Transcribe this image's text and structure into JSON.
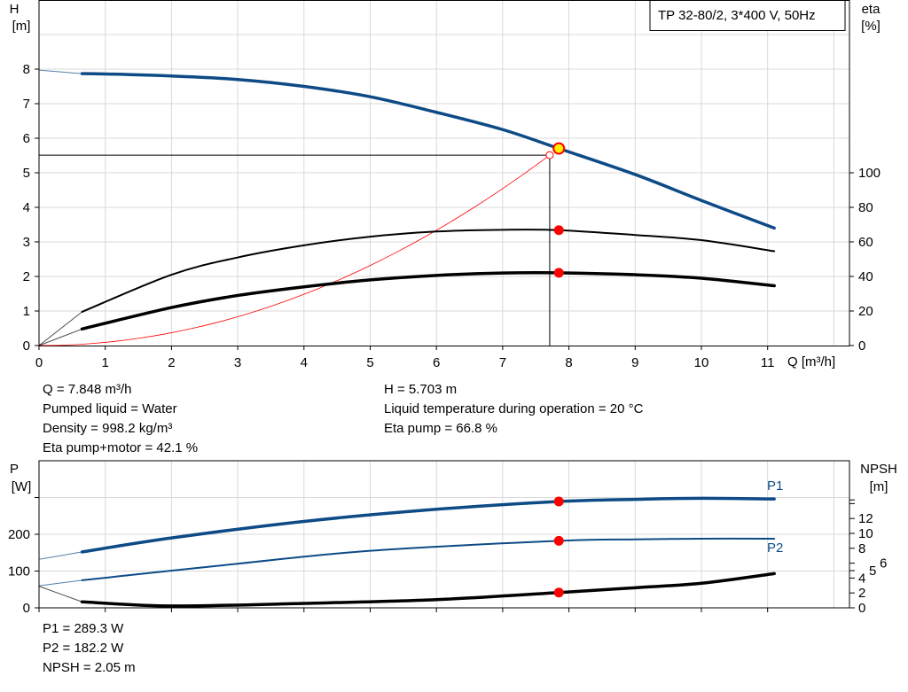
{
  "legend_box": "TP 32-80/2, 3*400 V, 50Hz",
  "colors": {
    "blue": "#0d4a86",
    "black": "#000000",
    "red": "#ff0000",
    "grid": "#d9d9d9",
    "duty_point": "#ffee00"
  },
  "chart_data": [
    {
      "type": "line",
      "ylabel": "H",
      "yunit": "[m]",
      "y2label": "eta",
      "y2unit": "[%]",
      "xlabel": "Q [m³/h]",
      "xlim": [
        0,
        12
      ],
      "ylim": [
        0,
        10
      ],
      "y2lim": [
        0,
        200
      ],
      "xticks": [
        0,
        1,
        2,
        3,
        4,
        5,
        6,
        7,
        8,
        9,
        10,
        11
      ],
      "yticks": [
        0,
        1,
        2,
        3,
        4,
        5,
        6,
        7,
        8
      ],
      "y2ticks": [
        0,
        20,
        40,
        60,
        80,
        100
      ],
      "grid": true,
      "series": [
        {
          "role": "head",
          "axis": "H",
          "x": [
            0.65,
            1,
            2,
            3,
            4,
            5,
            6,
            7,
            7.848,
            9,
            10,
            11.1
          ],
          "y": [
            7.87,
            7.86,
            7.8,
            7.7,
            7.5,
            7.2,
            6.75,
            6.25,
            5.703,
            4.95,
            4.2,
            3.4
          ],
          "extension": {
            "x": [
              0,
              0.65
            ],
            "y": [
              7.97,
              7.87
            ]
          }
        },
        {
          "role": "eta-pump",
          "axis": "eta",
          "x": [
            0.65,
            2,
            3,
            4,
            5,
            6,
            7,
            7.848,
            9,
            10,
            11.1
          ],
          "y": [
            19.5,
            41,
            51,
            58,
            63,
            66,
            67,
            66.8,
            64,
            61,
            54.6
          ],
          "extension": {
            "x": [
              0,
              0.65
            ],
            "y": [
              0,
              19.5
            ]
          }
        },
        {
          "role": "eta-pump-motor",
          "axis": "eta",
          "x": [
            0.65,
            2,
            3,
            4,
            5,
            6,
            7,
            7.848,
            9,
            10,
            11.1
          ],
          "y": [
            9.6,
            22,
            29,
            34,
            38,
            40.6,
            42,
            42.1,
            41,
            39,
            34.6
          ],
          "extension": {
            "x": [
              0,
              0.65
            ],
            "y": [
              0,
              9.6
            ]
          }
        },
        {
          "role": "system-curve",
          "axis": "H",
          "x": [
            0,
            7.71
          ],
          "y": [
            0,
            5.51
          ],
          "shape": "quadratic"
        }
      ],
      "duty_point": {
        "Q": 7.848,
        "H": 5.703,
        "eta_pump": 66.8,
        "eta_pump_motor": 42.1
      },
      "requested_point": {
        "Q": 7.71,
        "H": 5.51
      }
    },
    {
      "type": "line",
      "ylabel": "P",
      "yunit": "[W]",
      "y2label": "NPSH",
      "y2unit": "[m]",
      "xlim": [
        0,
        12
      ],
      "ylim": [
        0,
        400
      ],
      "y2lim": [
        0,
        19.8
      ],
      "yticks": [
        0,
        100,
        200
      ],
      "y2ticks": [
        0,
        2,
        4,
        5,
        6,
        8,
        10,
        12
      ],
      "grid": true,
      "series": [
        {
          "name": "P1",
          "axis": "P",
          "x": [
            0.65,
            2,
            4,
            6,
            7.848,
            9,
            10,
            11.1
          ],
          "y": [
            152,
            190,
            235,
            268,
            289.3,
            295,
            298,
            296
          ],
          "extension": {
            "x": [
              0,
              0.65
            ],
            "y": [
              132,
              152
            ]
          }
        },
        {
          "name": "P2",
          "axis": "P",
          "x": [
            0.65,
            3,
            5,
            7.848,
            9,
            10,
            11.1
          ],
          "y": [
            75,
            120,
            155,
            182.2,
            186,
            188,
            188
          ],
          "extension": {
            "x": [
              0,
              0.65
            ],
            "y": [
              60,
              75
            ]
          }
        },
        {
          "role": "npsh",
          "axis": "NPSH",
          "x": [
            0.65,
            2,
            4,
            6,
            7.848,
            9,
            10,
            11.1
          ],
          "y": [
            0.8,
            0.25,
            0.6,
            1.1,
            2.05,
            2.7,
            3.3,
            4.6
          ],
          "extension": {
            "x": [
              0,
              0.65
            ],
            "y": [
              2.9,
              0.8
            ]
          }
        }
      ],
      "duty_point": {
        "P1": 289.3,
        "P2": 182.2,
        "NPSH": 2.05
      }
    }
  ],
  "info_top_left": [
    "Q = 7.848 m³/h",
    "Pumped liquid = Water",
    "Density = 998.2 kg/m³",
    "Eta pump+motor = 42.1 %"
  ],
  "info_top_right": [
    "H = 5.703 m",
    "Liquid temperature during operation = 20 °C",
    "Eta pump = 66.8 %"
  ],
  "info_bottom": [
    "P1 = 289.3 W",
    "P2 = 182.2 W",
    "NPSH = 2.05 m"
  ]
}
